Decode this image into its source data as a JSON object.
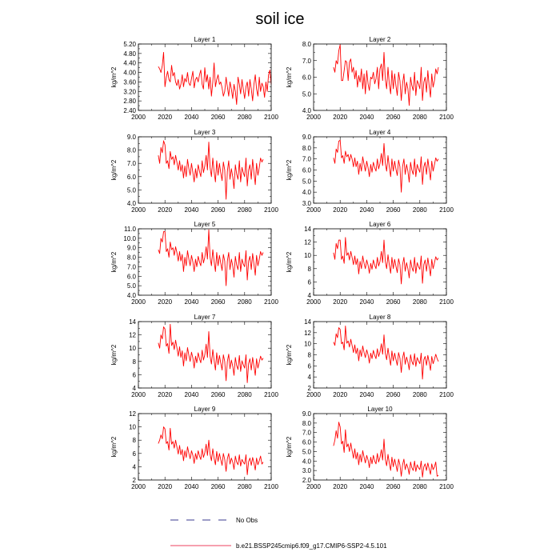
{
  "figure": {
    "title": "soil ice",
    "legend": [
      {
        "label": "No Obs",
        "color": "#3b3b8f",
        "style": "dashed"
      },
      {
        "label": "b.e21.BSSP245cmip6.f09_g17.CMIP6-SSP2-4.5.101",
        "color": "#e8002a",
        "style": "solid"
      }
    ],
    "series_color": "#ff0000"
  },
  "chart_data": [
    {
      "type": "line",
      "title": "Layer 1",
      "ylabel": "kg/m^2",
      "xlim": [
        2000,
        2100
      ],
      "ylim": [
        2.4,
        5.2
      ],
      "xticks": [
        2000,
        2020,
        2040,
        2060,
        2080,
        2100
      ],
      "yticks": [
        "2.40",
        "2.80",
        "3.20",
        "3.60",
        "4.00",
        "4.40",
        "4.80",
        "5.20"
      ],
      "x_start": 2015,
      "values": [
        4.25,
        4.15,
        4.0,
        4.3,
        4.85,
        3.4,
        3.8,
        4.05,
        3.7,
        3.6,
        4.3,
        3.85,
        4.0,
        3.6,
        3.45,
        3.7,
        3.3,
        3.5,
        3.9,
        3.4,
        3.75,
        3.6,
        4.0,
        3.55,
        3.45,
        3.75,
        4.05,
        3.35,
        3.7,
        3.8,
        3.6,
        3.9,
        4.1,
        3.5,
        3.3,
        4.2,
        3.6,
        3.9,
        3.3,
        3.8,
        3.0,
        3.6,
        4.4,
        3.4,
        3.7,
        3.9,
        3.5,
        3.6,
        3.35,
        3.0,
        3.2,
        3.8,
        3.4,
        3.0,
        3.6,
        3.3,
        2.9,
        3.5,
        3.2,
        2.65,
        3.8,
        3.5,
        3.1,
        3.7,
        3.3,
        2.9,
        3.4,
        3.6,
        3.0,
        3.7,
        3.3,
        2.8,
        3.5,
        3.9,
        3.3,
        3.0,
        3.8,
        3.2,
        3.55,
        3.4,
        2.95,
        3.6,
        3.2,
        3.9,
        4.1,
        3.5
      ]
    },
    {
      "type": "line",
      "title": "Layer 2",
      "ylabel": "kg/m^2",
      "xlim": [
        2000,
        2100
      ],
      "ylim": [
        4.0,
        8.0
      ],
      "xticks": [
        2000,
        2020,
        2040,
        2060,
        2080,
        2100
      ],
      "yticks": [
        "4.0",
        "5.0",
        "6.0",
        "7.0",
        "8.0"
      ],
      "x_start": 2015,
      "values": [
        6.6,
        6.3,
        7.0,
        6.8,
        7.6,
        7.95,
        5.8,
        5.8,
        6.4,
        7.0,
        6.9,
        5.8,
        6.9,
        7.1,
        6.3,
        6.6,
        5.9,
        6.4,
        5.4,
        6.1,
        5.7,
        6.5,
        5.3,
        6.2,
        5.0,
        6.4,
        5.6,
        5.2,
        6.0,
        5.9,
        6.3,
        5.6,
        5.9,
        6.6,
        5.3,
        6.5,
        6.8,
        5.8,
        7.5,
        5.9,
        5.3,
        6.6,
        5.6,
        5.0,
        6.4,
        5.3,
        6.2,
        5.5,
        4.9,
        6.3,
        5.8,
        4.6,
        5.6,
        6.2,
        5.0,
        5.7,
        5.3,
        4.3,
        6.0,
        5.5,
        5.2,
        6.3,
        4.9,
        5.8,
        5.6,
        5.3,
        6.6,
        4.6,
        5.7,
        6.0,
        5.1,
        6.4,
        5.5,
        4.8,
        6.2,
        5.4,
        5.8,
        6.5,
        6.2,
        6.6
      ]
    },
    {
      "type": "line",
      "title": "Layer 3",
      "ylabel": "kg/m^2",
      "xlim": [
        2000,
        2100
      ],
      "ylim": [
        4.0,
        9.0
      ],
      "xticks": [
        2000,
        2020,
        2040,
        2060,
        2080,
        2100
      ],
      "yticks": [
        "4.0",
        "5.0",
        "6.0",
        "7.0",
        "8.0",
        "9.0"
      ],
      "x_start": 2015,
      "values": [
        7.6,
        7.0,
        8.2,
        7.8,
        8.7,
        8.4,
        7.0,
        7.2,
        6.6,
        7.9,
        7.3,
        7.5,
        6.9,
        7.6,
        7.1,
        6.5,
        7.2,
        6.4,
        6.9,
        5.9,
        6.8,
        6.0,
        7.3,
        6.6,
        6.1,
        7.0,
        6.3,
        5.6,
        6.6,
        5.9,
        6.9,
        6.4,
        6.0,
        7.2,
        6.3,
        6.8,
        7.6,
        6.5,
        8.6,
        6.7,
        6.0,
        7.4,
        6.4,
        5.6,
        7.2,
        6.1,
        7.0,
        6.3,
        5.7,
        7.1,
        6.5,
        4.3,
        6.4,
        7.2,
        5.8,
        6.6,
        6.0,
        5.1,
        6.9,
        6.2,
        5.8,
        7.2,
        5.6,
        6.7,
        6.3,
        6.0,
        7.4,
        5.3,
        6.5,
        6.9,
        5.8,
        7.3,
        6.3,
        5.4,
        7.0,
        6.1,
        6.7,
        7.4,
        7.1,
        7.3
      ]
    },
    {
      "type": "line",
      "title": "Layer 4",
      "ylabel": "kg/m^2",
      "xlim": [
        2000,
        2100
      ],
      "ylim": [
        3.0,
        9.0
      ],
      "xticks": [
        2000,
        2020,
        2040,
        2060,
        2080,
        2100
      ],
      "yticks": [
        "3.0",
        "4.0",
        "5.0",
        "6.0",
        "7.0",
        "8.0",
        "9.0"
      ],
      "x_start": 2015,
      "values": [
        7.1,
        6.6,
        7.9,
        7.6,
        8.6,
        8.7,
        7.1,
        7.3,
        6.6,
        7.7,
        7.2,
        7.4,
        6.8,
        7.4,
        7.0,
        6.3,
        7.1,
        6.3,
        6.8,
        5.6,
        6.6,
        5.9,
        7.2,
        6.5,
        5.9,
        6.8,
        6.2,
        5.4,
        6.5,
        5.8,
        6.7,
        6.2,
        5.9,
        7.0,
        6.1,
        6.6,
        7.5,
        6.4,
        8.4,
        6.6,
        5.9,
        7.3,
        6.3,
        5.4,
        7.0,
        5.9,
        6.8,
        6.1,
        5.5,
        6.9,
        6.3,
        4.0,
        6.3,
        7.0,
        5.6,
        6.5,
        5.9,
        4.9,
        6.7,
        6.0,
        5.6,
        7.0,
        5.4,
        6.5,
        6.1,
        5.8,
        7.2,
        4.7,
        6.3,
        6.7,
        5.6,
        7.0,
        6.1,
        5.1,
        6.8,
        5.9,
        6.5,
        7.1,
        6.8,
        7.0
      ]
    },
    {
      "type": "line",
      "title": "Layer 5",
      "ylabel": "kg/m^2",
      "xlim": [
        2000,
        2100
      ],
      "ylim": [
        4.0,
        11.0
      ],
      "xticks": [
        2000,
        2020,
        2040,
        2060,
        2080,
        2100
      ],
      "yticks": [
        "4.0",
        "5.0",
        "6.0",
        "7.0",
        "8.0",
        "9.0",
        "10.0",
        "11.0"
      ],
      "x_start": 2015,
      "values": [
        8.8,
        8.4,
        10.0,
        9.6,
        10.7,
        10.7,
        8.6,
        8.9,
        8.0,
        9.6,
        8.8,
        9.0,
        8.2,
        9.1,
        8.5,
        7.6,
        8.6,
        7.6,
        8.3,
        6.5,
        8.0,
        7.1,
        8.7,
        7.8,
        7.1,
        8.2,
        7.5,
        6.5,
        7.8,
        7.0,
        8.1,
        7.5,
        7.1,
        8.5,
        7.4,
        8.0,
        9.1,
        7.8,
        10.9,
        8.0,
        7.1,
        8.8,
        7.6,
        6.5,
        8.5,
        7.1,
        8.2,
        7.4,
        6.6,
        8.3,
        7.6,
        5.0,
        7.6,
        8.5,
        6.7,
        7.8,
        7.1,
        5.9,
        8.1,
        7.2,
        6.7,
        8.5,
        6.5,
        7.8,
        7.3,
        7.0,
        8.7,
        5.6,
        7.6,
        8.1,
        6.7,
        8.4,
        7.3,
        6.1,
        8.2,
        7.1,
        7.8,
        8.6,
        8.2,
        8.5
      ]
    },
    {
      "type": "line",
      "title": "Layer 6",
      "ylabel": "kg/m^2",
      "xlim": [
        2000,
        2100
      ],
      "ylim": [
        4,
        14
      ],
      "xticks": [
        2000,
        2020,
        2040,
        2060,
        2080,
        2100
      ],
      "yticks": [
        "4",
        "6",
        "8",
        "10",
        "12",
        "14"
      ],
      "x_start": 2015,
      "values": [
        10.4,
        9.4,
        11.8,
        11.0,
        12.3,
        12.3,
        9.4,
        9.9,
        8.8,
        12.7,
        10.0,
        10.4,
        9.3,
        10.6,
        9.7,
        8.6,
        9.9,
        8.6,
        9.5,
        7.2,
        9.1,
        8.0,
        9.9,
        8.8,
        8.0,
        9.3,
        8.5,
        7.3,
        8.8,
        7.9,
        9.3,
        8.5,
        8.0,
        9.7,
        8.4,
        9.1,
        10.6,
        8.9,
        12.3,
        9.1,
        8.0,
        10.1,
        8.6,
        7.3,
        9.7,
        8.0,
        9.4,
        8.4,
        7.4,
        9.5,
        8.6,
        5.7,
        8.6,
        9.7,
        7.6,
        8.9,
        8.0,
        6.6,
        9.3,
        8.2,
        7.6,
        9.7,
        7.3,
        8.9,
        8.3,
        7.9,
        9.9,
        5.8,
        8.6,
        9.3,
        7.6,
        9.6,
        8.3,
        6.9,
        9.4,
        8.0,
        8.9,
        9.8,
        9.3,
        9.6
      ]
    },
    {
      "type": "line",
      "title": "Layer 7",
      "ylabel": "kg/m^2",
      "xlim": [
        2000,
        2100
      ],
      "ylim": [
        4,
        14
      ],
      "xticks": [
        2000,
        2020,
        2040,
        2060,
        2080,
        2100
      ],
      "yticks": [
        "4",
        "6",
        "8",
        "10",
        "12",
        "14"
      ],
      "x_start": 2015,
      "values": [
        10.8,
        10.0,
        12.0,
        11.4,
        13.2,
        12.9,
        10.3,
        10.7,
        9.2,
        13.6,
        10.4,
        10.9,
        9.8,
        11.2,
        10.1,
        8.8,
        10.2,
        8.6,
        9.6,
        7.3,
        9.3,
        8.1,
        10.1,
        8.9,
        8.0,
        9.4,
        8.5,
        7.0,
        8.8,
        7.8,
        9.3,
        8.4,
        7.8,
        9.7,
        8.2,
        9.0,
        10.6,
        8.6,
        12.5,
        8.8,
        7.6,
        9.8,
        8.2,
        6.7,
        9.3,
        7.5,
        8.9,
        7.8,
        6.7,
        9.0,
        8.0,
        5.1,
        8.0,
        9.1,
        6.9,
        8.2,
        7.3,
        5.9,
        8.6,
        7.4,
        6.8,
        8.9,
        6.5,
        8.1,
        7.5,
        7.0,
        9.0,
        4.8,
        7.7,
        8.4,
        6.7,
        8.6,
        7.3,
        5.9,
        8.4,
        7.0,
        7.9,
        8.8,
        8.2,
        8.5
      ]
    },
    {
      "type": "line",
      "title": "Layer 8",
      "ylabel": "kg/m^2",
      "xlim": [
        2000,
        2100
      ],
      "ylim": [
        2,
        14
      ],
      "xticks": [
        2000,
        2020,
        2040,
        2060,
        2080,
        2100
      ],
      "yticks": [
        "2",
        "4",
        "6",
        "8",
        "10",
        "12",
        "14"
      ],
      "x_start": 2015,
      "values": [
        10.3,
        9.7,
        11.8,
        11.1,
        12.9,
        12.6,
        10.0,
        10.3,
        8.9,
        13.2,
        10.1,
        10.5,
        9.4,
        10.8,
        9.7,
        8.4,
        9.8,
        8.2,
        9.2,
        6.9,
        8.9,
        7.7,
        9.6,
        8.4,
        7.5,
        8.9,
        8.0,
        6.5,
        8.3,
        7.3,
        8.8,
        7.9,
        7.3,
        9.1,
        7.7,
        8.5,
        10.0,
        8.1,
        11.6,
        8.3,
        7.1,
        9.2,
        7.6,
        6.1,
        8.7,
        6.9,
        8.3,
        7.2,
        6.1,
        8.4,
        7.4,
        4.8,
        7.4,
        8.5,
        6.3,
        7.6,
        6.7,
        5.3,
        8.0,
        6.8,
        6.2,
        8.2,
        5.9,
        7.5,
        6.9,
        6.4,
        8.3,
        3.6,
        7.1,
        7.7,
        6.1,
        7.9,
        6.7,
        5.2,
        7.7,
        6.4,
        7.2,
        8.1,
        7.3,
        6.8
      ]
    },
    {
      "type": "line",
      "title": "Layer 9",
      "ylabel": "kg/m^2",
      "xlim": [
        2000,
        2100
      ],
      "ylim": [
        2,
        12
      ],
      "xticks": [
        2000,
        2020,
        2040,
        2060,
        2080,
        2100
      ],
      "yticks": [
        "2",
        "4",
        "6",
        "8",
        "10",
        "12"
      ],
      "x_start": 2015,
      "values": [
        7.5,
        8.0,
        8.8,
        8.2,
        10.0,
        9.7,
        7.5,
        7.8,
        6.5,
        9.8,
        7.4,
        7.8,
        6.8,
        8.0,
        7.0,
        5.9,
        7.2,
        5.8,
        6.6,
        4.9,
        6.4,
        5.4,
        7.0,
        6.0,
        5.2,
        6.4,
        5.7,
        4.5,
        6.0,
        5.1,
        6.4,
        5.6,
        5.1,
        6.7,
        5.4,
        6.1,
        7.4,
        5.7,
        8.0,
        5.9,
        4.9,
        6.7,
        5.3,
        4.3,
        6.3,
        4.8,
        6.0,
        5.1,
        4.2,
        6.0,
        5.1,
        3.3,
        5.2,
        6.0,
        4.4,
        5.3,
        4.7,
        3.6,
        5.6,
        4.7,
        4.3,
        5.8,
        4.1,
        5.1,
        4.7,
        4.4,
        5.8,
        2.8,
        4.8,
        5.3,
        4.2,
        5.4,
        4.6,
        3.5,
        5.3,
        4.3,
        4.9,
        5.6,
        4.4,
        4.7
      ]
    },
    {
      "type": "line",
      "title": "Layer 10",
      "ylabel": "kg/m^2",
      "xlim": [
        2000,
        2100
      ],
      "ylim": [
        2.0,
        9.0
      ],
      "xticks": [
        2000,
        2020,
        2040,
        2060,
        2080,
        2100
      ],
      "yticks": [
        "2.0",
        "3.0",
        "4.0",
        "5.0",
        "6.0",
        "7.0",
        "8.0",
        "9.0"
      ],
      "x_start": 2015,
      "values": [
        5.6,
        6.2,
        7.2,
        6.4,
        8.1,
        7.6,
        5.8,
        6.1,
        4.9,
        7.3,
        5.5,
        5.8,
        5.0,
        5.9,
        5.1,
        4.3,
        5.3,
        4.2,
        4.9,
        3.6,
        4.7,
        3.9,
        5.1,
        4.4,
        3.8,
        4.6,
        4.1,
        3.3,
        4.4,
        3.7,
        4.6,
        4.0,
        3.7,
        4.8,
        3.9,
        4.4,
        5.2,
        4.1,
        6.3,
        4.2,
        3.5,
        4.7,
        3.8,
        3.0,
        4.4,
        3.4,
        4.2,
        3.6,
        2.9,
        4.2,
        3.6,
        2.4,
        3.6,
        4.2,
        3.1,
        3.7,
        3.3,
        2.6,
        3.9,
        3.3,
        3.0,
        4.0,
        2.9,
        3.6,
        3.3,
        3.1,
        4.0,
        2.3,
        3.4,
        3.7,
        3.0,
        3.8,
        3.2,
        2.6,
        3.7,
        3.1,
        3.4,
        3.9,
        2.4,
        2.5
      ]
    }
  ]
}
